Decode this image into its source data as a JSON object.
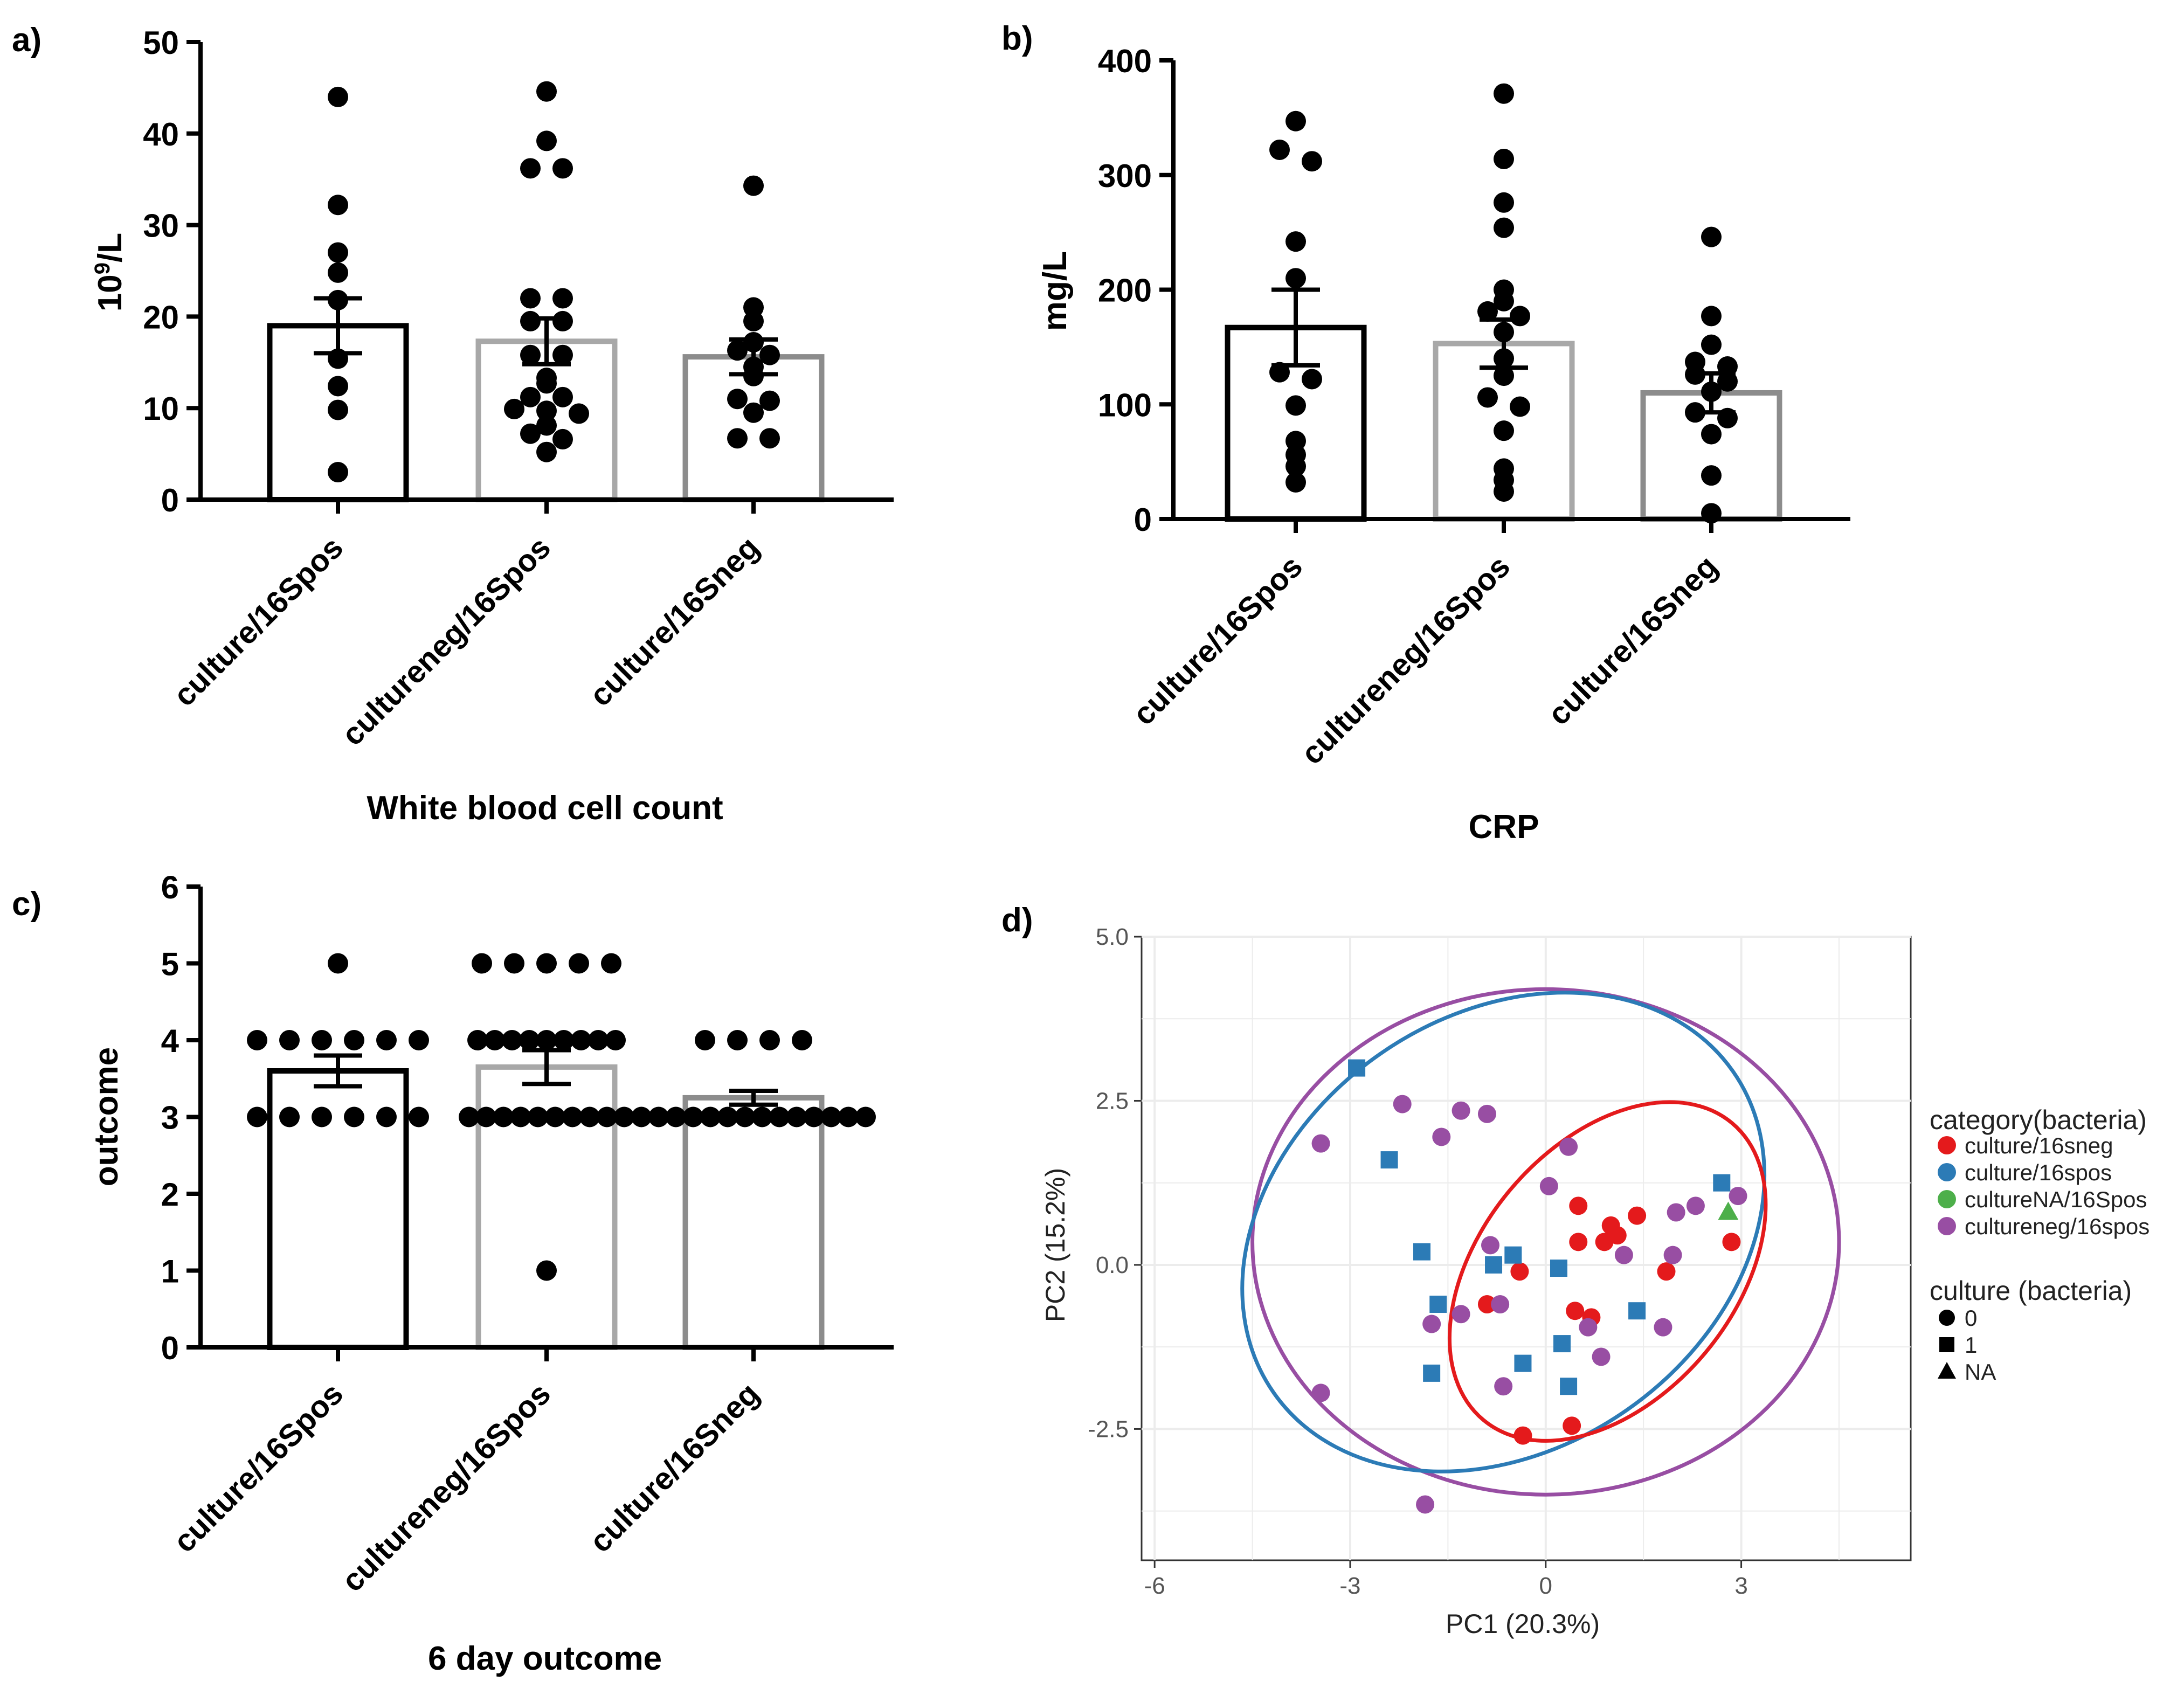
{
  "panels": {
    "a": {
      "label": "a)"
    },
    "b": {
      "label": "b)"
    },
    "c": {
      "label": "c)"
    },
    "d": {
      "label": "d)"
    }
  },
  "colors": {
    "ink": "#000000",
    "bar_culture16Spos": "#000000",
    "bar_cultureneg16Spos": "#a8a8a8",
    "bar_culture16Sneg": "#8c8c8c",
    "red": "#e41a1c",
    "blue": "#2c7bb6",
    "green": "#4daf4a",
    "purple": "#984ea3",
    "grid": "#ececec",
    "pca_text": "#555555"
  },
  "chart_data": [
    {
      "id": "a",
      "type": "bar",
      "title": "White blood cell count",
      "ylabel_base": "10",
      "ylabel_sup": "9",
      "ylabel_unit": "/L",
      "ylim": [
        0,
        50
      ],
      "yticks": [
        "0",
        "10",
        "20",
        "30",
        "40",
        "50"
      ],
      "categories": [
        "culture/16Spos",
        "cultureneg/16Spos",
        "culture/16Sneg"
      ],
      "means": [
        19,
        17.3,
        15.6
      ],
      "sem": [
        3.0,
        2.5,
        1.9
      ],
      "points": [
        [
          44,
          32.2,
          27,
          24.8,
          21.8,
          15.4,
          12.4,
          9.8,
          3
        ],
        [
          44.6,
          39.2,
          36.2,
          36.2,
          22,
          22,
          19.5,
          19.5,
          15.8,
          15.8,
          13.3,
          12.7,
          11.2,
          11.2,
          9.9,
          9.7,
          9.4,
          8.1,
          7.2,
          6.6,
          5.2
        ],
        [
          34.3,
          21,
          19.5,
          17.2,
          16.3,
          15.8,
          14.5,
          13.5,
          11,
          10.8,
          9.5,
          6.7,
          6.7
        ]
      ]
    },
    {
      "id": "b",
      "type": "bar",
      "title": "CRP",
      "ylabel": "mg/L",
      "ylim": [
        0,
        400
      ],
      "yticks": [
        "0",
        "100",
        "200",
        "300",
        "400"
      ],
      "categories": [
        "culture/16Spos",
        "cultureneg/16Spos",
        "culture/16Sneg"
      ],
      "means": [
        167,
        153,
        110
      ],
      "sem": [
        33,
        21,
        17
      ],
      "points": [
        [
          347,
          322,
          312,
          242,
          210,
          128,
          122,
          99,
          68,
          56,
          46,
          32
        ],
        [
          371,
          314,
          276,
          254,
          200,
          190,
          181,
          177,
          163,
          140,
          125,
          106,
          98,
          77,
          44,
          34,
          24
        ],
        [
          246,
          177,
          152,
          137,
          133,
          126,
          120,
          111,
          93,
          88,
          74,
          38,
          5
        ]
      ]
    },
    {
      "id": "c",
      "type": "bar",
      "title": "6 day outcome",
      "ylabel": "outcome",
      "ylim": [
        0,
        6
      ],
      "yticks": [
        "0",
        "1",
        "2",
        "3",
        "4",
        "5",
        "6"
      ],
      "categories": [
        "culture/16Spos",
        "cultureneg/16Spos",
        "culture/16Sneg"
      ],
      "means": [
        3.6,
        3.65,
        3.25
      ],
      "sem": [
        0.2,
        0.22,
        0.09
      ],
      "points": [
        [
          5,
          4,
          4,
          4,
          4,
          4,
          4,
          3,
          3,
          3,
          3,
          3,
          3
        ],
        [
          5,
          5,
          5,
          5,
          5,
          4,
          4,
          4,
          4,
          4,
          4,
          4,
          4,
          4,
          3,
          3,
          3,
          3,
          3,
          3,
          3,
          3,
          3,
          3,
          1
        ],
        [
          4,
          4,
          4,
          4,
          3,
          3,
          3,
          3,
          3,
          3,
          3,
          3,
          3,
          3,
          3,
          3,
          3,
          3
        ]
      ]
    },
    {
      "id": "d",
      "type": "scatter",
      "title": "",
      "xlabel": "PC1 (20.3%)",
      "ylabel": "PC2 (15.2%)",
      "xlim": [
        -6.2,
        5.6
      ],
      "ylim": [
        -4.5,
        5.0
      ],
      "xticks": [
        -6,
        -3,
        0,
        3
      ],
      "xtick_labels": [
        "-6",
        "-3",
        "0",
        "3"
      ],
      "yticks": [
        -2.5,
        0,
        2.5,
        5
      ],
      "ytick_labels": [
        "-2.5",
        "0.0",
        "2.5",
        "5.0"
      ],
      "legend_category_title": "category(bacteria)",
      "legend_culture_title": "culture (bacteria)",
      "series": [
        {
          "name": "culture/16sneg",
          "color_key": "red",
          "points": [
            [
              0.5,
              0.9
            ],
            [
              1.0,
              0.6
            ],
            [
              1.4,
              0.75
            ],
            [
              0.5,
              0.35
            ],
            [
              0.9,
              0.35
            ],
            [
              1.1,
              0.45
            ],
            [
              2.85,
              0.35
            ],
            [
              -0.4,
              -0.1
            ],
            [
              -0.9,
              -0.6
            ],
            [
              0.45,
              -0.7
            ],
            [
              0.7,
              -0.8
            ],
            [
              1.85,
              -0.1
            ],
            [
              -0.35,
              -2.6
            ],
            [
              0.4,
              -2.45
            ]
          ]
        },
        {
          "name": "culture/16spos",
          "color_key": "blue",
          "points": [
            [
              -2.9,
              3.0
            ],
            [
              -2.4,
              1.6
            ],
            [
              2.7,
              1.25
            ],
            [
              -1.9,
              0.2
            ],
            [
              -0.8,
              0.0
            ],
            [
              -0.5,
              0.15
            ],
            [
              0.2,
              -0.05
            ],
            [
              -1.65,
              -0.6
            ],
            [
              1.4,
              -0.7
            ],
            [
              -1.75,
              -1.65
            ],
            [
              -0.35,
              -1.5
            ],
            [
              0.25,
              -1.2
            ],
            [
              0.35,
              -1.85
            ]
          ]
        },
        {
          "name": "cultureNA/16Spos",
          "color_key": "green",
          "points": [
            [
              2.8,
              0.8
            ]
          ]
        },
        {
          "name": "cultureneg/16spos",
          "color_key": "purple",
          "points": [
            [
              -2.2,
              2.45
            ],
            [
              -1.3,
              2.35
            ],
            [
              -0.9,
              2.3
            ],
            [
              -1.6,
              1.95
            ],
            [
              -3.45,
              1.85
            ],
            [
              0.35,
              1.8
            ],
            [
              0.05,
              1.2
            ],
            [
              2.0,
              0.8
            ],
            [
              2.3,
              0.9
            ],
            [
              2.95,
              1.05
            ],
            [
              -0.85,
              0.3
            ],
            [
              1.2,
              0.15
            ],
            [
              1.95,
              0.15
            ],
            [
              -1.3,
              -0.75
            ],
            [
              -0.7,
              -0.6
            ],
            [
              -1.75,
              -0.9
            ],
            [
              0.65,
              -0.95
            ],
            [
              1.8,
              -0.95
            ],
            [
              0.85,
              -1.4
            ],
            [
              -0.65,
              -1.85
            ],
            [
              -3.45,
              -1.95
            ],
            [
              -1.85,
              -3.65
            ]
          ]
        }
      ],
      "ellipses": [
        {
          "color_key": "purple",
          "cx": 0.0,
          "cy": 0.35,
          "rx": 4.5,
          "ry": 3.85,
          "rot": 0
        },
        {
          "color_key": "blue",
          "cx": -0.65,
          "cy": 0.5,
          "rx": 4.3,
          "ry": 3.3,
          "rot": -35
        },
        {
          "color_key": "red",
          "cx": 0.95,
          "cy": -0.1,
          "rx": 1.95,
          "ry": 2.95,
          "rot": 40
        }
      ],
      "legend_culture_items": [
        {
          "label": "0",
          "shape": "circle"
        },
        {
          "label": "1",
          "shape": "square"
        },
        {
          "label": "NA",
          "shape": "triangle"
        }
      ]
    }
  ]
}
